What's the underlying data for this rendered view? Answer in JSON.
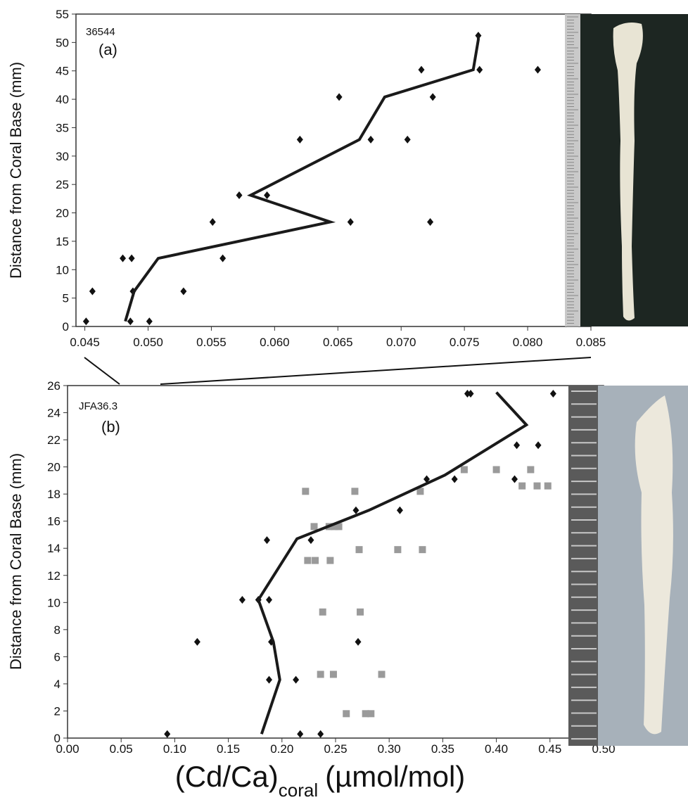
{
  "chart_data": [
    {
      "type": "scatter",
      "id_label": "36544",
      "panel_label": "(a)",
      "ylabel": "Distance from Coral Base (mm)",
      "xlim": [
        0.0443,
        0.085
      ],
      "ylim": [
        0,
        55
      ],
      "xticks": [
        {
          "value": 0.045,
          "label": "0.045"
        },
        {
          "value": 0.05,
          "label": "0.050"
        },
        {
          "value": 0.055,
          "label": "0.055"
        },
        {
          "value": 0.06,
          "label": "0.060"
        },
        {
          "value": 0.065,
          "label": "0.065"
        },
        {
          "value": 0.07,
          "label": "0.070"
        },
        {
          "value": 0.075,
          "label": "0.075"
        },
        {
          "value": 0.08,
          "label": "0.080"
        },
        {
          "value": 0.085,
          "label": "0.085"
        }
      ],
      "yticks": [
        0,
        5,
        10,
        15,
        20,
        25,
        30,
        35,
        40,
        45,
        50,
        55
      ],
      "series": [
        {
          "kind": "points",
          "marker": "diamond",
          "color": "#111111",
          "x": [
            0.0451,
            0.0456,
            0.0486,
            0.0488,
            0.0501,
            0.0528,
            0.048,
            0.0487,
            0.0559,
            0.0551,
            0.066,
            0.0723,
            0.0572,
            0.0594,
            0.062,
            0.0676,
            0.0705,
            0.0651,
            0.0725,
            0.0716,
            0.0762,
            0.0808,
            0.0761
          ],
          "y": [
            0.9,
            6.2,
            0.9,
            6.2,
            0.9,
            6.2,
            12,
            12,
            12,
            18.4,
            18.4,
            18.4,
            23.1,
            23.1,
            32.9,
            32.9,
            32.9,
            40.4,
            40.4,
            45.2,
            45.2,
            45.2,
            51.2
          ]
        },
        {
          "kind": "line",
          "color": "#1a1a1a",
          "x": [
            0.0482,
            0.0489,
            0.0508,
            0.0644,
            0.0581,
            0.0667,
            0.0687,
            0.0757,
            0.0761,
            0.0761
          ],
          "y": [
            0.9,
            6.2,
            12,
            18.4,
            23.1,
            32.9,
            40.4,
            45.2,
            50.5,
            51.2
          ]
        }
      ]
    },
    {
      "type": "scatter",
      "id_label": "JFA36.3",
      "panel_label": "(b)",
      "ylabel": "Distance from Coral Base (mm)",
      "xlim": [
        0,
        0.5
      ],
      "ylim": [
        0,
        26
      ],
      "xticks": [
        {
          "value": 0,
          "label": "0.00"
        },
        {
          "value": 0.05,
          "label": "0.05"
        },
        {
          "value": 0.1,
          "label": "0.10"
        },
        {
          "value": 0.15,
          "label": "0.15"
        },
        {
          "value": 0.2,
          "label": "0.20"
        },
        {
          "value": 0.25,
          "label": "0.25"
        },
        {
          "value": 0.3,
          "label": "0.30"
        },
        {
          "value": 0.35,
          "label": "0.35"
        },
        {
          "value": 0.4,
          "label": "0.40"
        },
        {
          "value": 0.45,
          "label": "0.45"
        },
        {
          "value": 0.5,
          "label": "0.50"
        }
      ],
      "yticks": [
        0,
        2,
        4,
        6,
        8,
        10,
        12,
        14,
        16,
        18,
        20,
        22,
        24,
        26
      ],
      "xlabel": {
        "main": "(Cd/Ca)",
        "subscript": "coral",
        "units": "(µmol/mol)"
      },
      "series": [
        {
          "kind": "points",
          "marker": "square",
          "color": "#9a9a9a",
          "x": [
            0.26,
            0.278,
            0.283,
            0.236,
            0.248,
            0.293,
            0.238,
            0.273,
            0.224,
            0.231,
            0.245,
            0.23,
            0.244,
            0.249,
            0.253,
            0.272,
            0.308,
            0.331,
            0.222,
            0.268,
            0.329,
            0.37,
            0.4,
            0.432,
            0.424,
            0.438,
            0.448
          ],
          "y": [
            1.8,
            1.8,
            1.8,
            4.7,
            4.7,
            4.7,
            9.3,
            9.3,
            13.1,
            13.1,
            13.1,
            15.6,
            15.6,
            15.6,
            15.6,
            13.9,
            13.9,
            13.9,
            18.2,
            18.2,
            18.2,
            19.8,
            19.8,
            19.8,
            18.6,
            18.6,
            18.6
          ]
        },
        {
          "kind": "points",
          "marker": "diamond",
          "color": "#111111",
          "x": [
            0.093,
            0.217,
            0.236,
            0.188,
            0.213,
            0.19,
            0.271,
            0.121,
            0.163,
            0.178,
            0.188,
            0.186,
            0.227,
            0.269,
            0.31,
            0.335,
            0.361,
            0.417,
            0.419,
            0.439,
            0.373,
            0.376,
            0.453
          ],
          "y": [
            0.3,
            0.3,
            0.3,
            4.3,
            4.3,
            7.1,
            7.1,
            7.1,
            10.2,
            10.2,
            10.2,
            14.6,
            14.6,
            16.8,
            16.8,
            19.1,
            19.1,
            19.1,
            21.6,
            21.6,
            25.4,
            25.4,
            25.4
          ]
        },
        {
          "kind": "line",
          "color": "#1a1a1a",
          "x": [
            0.181,
            0.198,
            0.192,
            0.178,
            0.214,
            0.281,
            0.352,
            0.428,
            0.4
          ],
          "y": [
            0.3,
            4.3,
            7.1,
            10.2,
            14.7,
            16.8,
            19.4,
            23.1,
            25.5
          ]
        }
      ]
    }
  ]
}
